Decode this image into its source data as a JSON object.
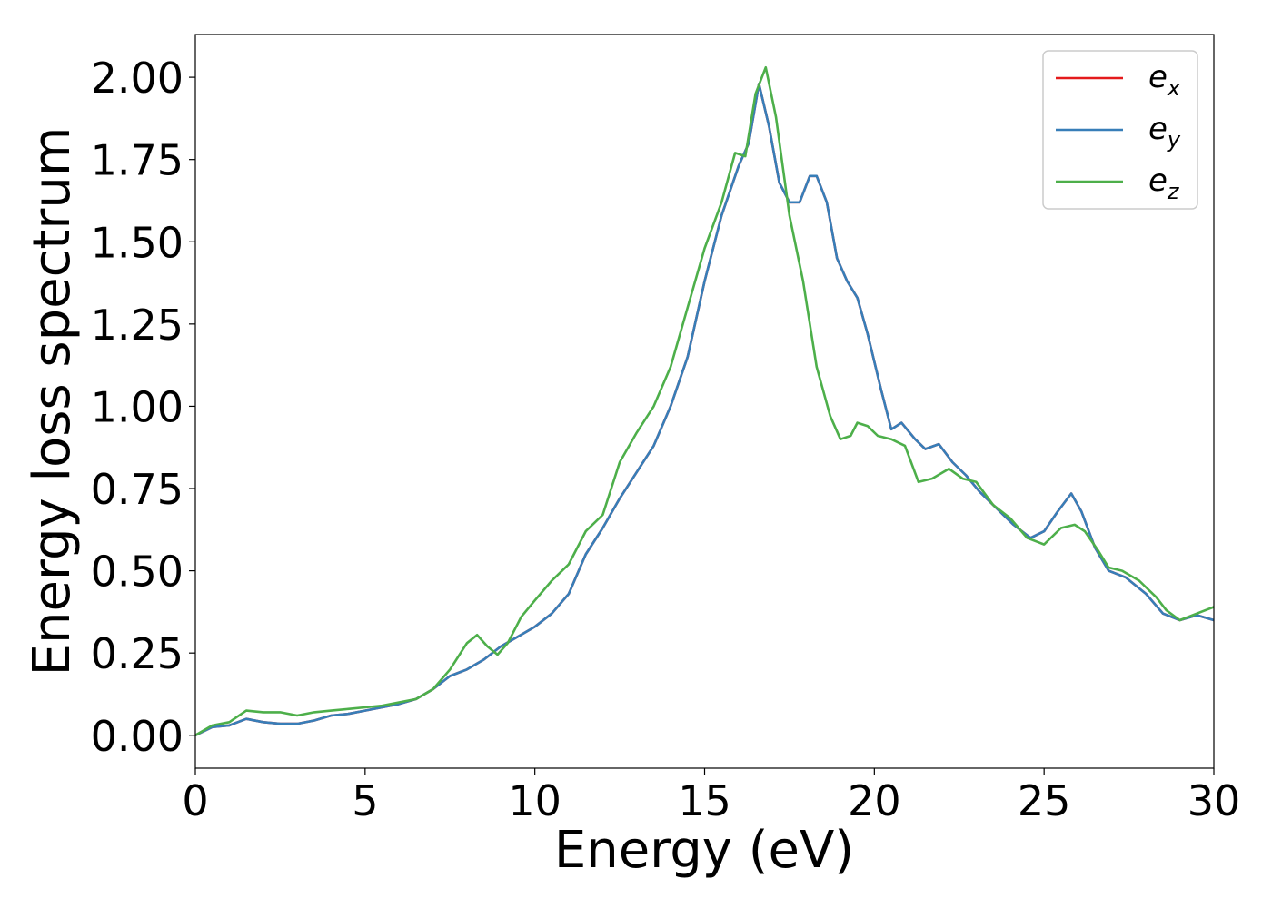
{
  "chart_data": {
    "type": "line",
    "xlabel": "Energy (eV)",
    "ylabel": "Energy loss spectrum",
    "xlim": [
      0,
      30
    ],
    "ylim": [
      -0.1,
      2.13
    ],
    "xticks": [
      0,
      5,
      10,
      15,
      20,
      25,
      30
    ],
    "xtick_labels": [
      "0",
      "5",
      "10",
      "15",
      "20",
      "25",
      "30"
    ],
    "yticks": [
      0,
      0.25,
      0.5,
      0.75,
      1.0,
      1.25,
      1.5,
      1.75,
      2.0
    ],
    "ytick_labels": [
      "0.00",
      "0.25",
      "0.50",
      "0.75",
      "1.00",
      "1.25",
      "1.50",
      "1.75",
      "2.00"
    ],
    "grid": false,
    "legend": "top-right",
    "series": [
      {
        "name": "e_x",
        "label_base": "e",
        "label_sub": "x",
        "color": "#e41a1c",
        "x": [
          0,
          0.5,
          1,
          1.5,
          2,
          2.5,
          3,
          3.5,
          4,
          4.5,
          5,
          5.5,
          6,
          6.5,
          7,
          7.5,
          8,
          8.5,
          9,
          9.5,
          10,
          10.5,
          11,
          11.5,
          12,
          12.5,
          13,
          13.5,
          14,
          14.5,
          15,
          15.5,
          16,
          16.3,
          16.6,
          16.9,
          17.2,
          17.5,
          17.8,
          18.1,
          18.3,
          18.6,
          18.9,
          19.2,
          19.5,
          19.8,
          20.2,
          20.5,
          20.8,
          21.2,
          21.5,
          21.9,
          22.3,
          22.7,
          23.1,
          23.6,
          24.1,
          24.6,
          25,
          25.4,
          25.8,
          26.1,
          26.5,
          26.9,
          27.4,
          28,
          28.5,
          29,
          29.5,
          30
        ],
        "y": [
          0,
          0.025,
          0.03,
          0.05,
          0.04,
          0.035,
          0.035,
          0.045,
          0.06,
          0.065,
          0.075,
          0.085,
          0.095,
          0.11,
          0.14,
          0.18,
          0.2,
          0.23,
          0.27,
          0.3,
          0.33,
          0.37,
          0.43,
          0.55,
          0.63,
          0.72,
          0.8,
          0.88,
          1.0,
          1.15,
          1.38,
          1.58,
          1.73,
          1.8,
          1.98,
          1.85,
          1.68,
          1.62,
          1.62,
          1.7,
          1.7,
          1.62,
          1.45,
          1.38,
          1.33,
          1.22,
          1.05,
          0.93,
          0.95,
          0.9,
          0.87,
          0.885,
          0.83,
          0.79,
          0.74,
          0.69,
          0.64,
          0.6,
          0.62,
          0.68,
          0.735,
          0.68,
          0.57,
          0.5,
          0.48,
          0.43,
          0.37,
          0.35,
          0.365,
          0.35
        ]
      },
      {
        "name": "e_y",
        "label_base": "e",
        "label_sub": "y",
        "color": "#377eb8",
        "x": [
          0,
          0.5,
          1,
          1.5,
          2,
          2.5,
          3,
          3.5,
          4,
          4.5,
          5,
          5.5,
          6,
          6.5,
          7,
          7.5,
          8,
          8.5,
          9,
          9.5,
          10,
          10.5,
          11,
          11.5,
          12,
          12.5,
          13,
          13.5,
          14,
          14.5,
          15,
          15.5,
          16,
          16.3,
          16.6,
          16.9,
          17.2,
          17.5,
          17.8,
          18.1,
          18.3,
          18.6,
          18.9,
          19.2,
          19.5,
          19.8,
          20.2,
          20.5,
          20.8,
          21.2,
          21.5,
          21.9,
          22.3,
          22.7,
          23.1,
          23.6,
          24.1,
          24.6,
          25,
          25.4,
          25.8,
          26.1,
          26.5,
          26.9,
          27.4,
          28,
          28.5,
          29,
          29.5,
          30
        ],
        "y": [
          0,
          0.025,
          0.03,
          0.05,
          0.04,
          0.035,
          0.035,
          0.045,
          0.06,
          0.065,
          0.075,
          0.085,
          0.095,
          0.11,
          0.14,
          0.18,
          0.2,
          0.23,
          0.27,
          0.3,
          0.33,
          0.37,
          0.43,
          0.55,
          0.63,
          0.72,
          0.8,
          0.88,
          1.0,
          1.15,
          1.38,
          1.58,
          1.73,
          1.8,
          1.98,
          1.85,
          1.68,
          1.62,
          1.62,
          1.7,
          1.7,
          1.62,
          1.45,
          1.38,
          1.33,
          1.22,
          1.05,
          0.93,
          0.95,
          0.9,
          0.87,
          0.885,
          0.83,
          0.79,
          0.74,
          0.69,
          0.64,
          0.6,
          0.62,
          0.68,
          0.735,
          0.68,
          0.57,
          0.5,
          0.48,
          0.43,
          0.37,
          0.35,
          0.365,
          0.35
        ]
      },
      {
        "name": "e_z",
        "label_base": "e",
        "label_sub": "z",
        "color": "#4daf4a",
        "x": [
          0,
          0.5,
          1,
          1.5,
          2,
          2.5,
          3,
          3.5,
          4,
          4.5,
          5,
          5.5,
          6,
          6.5,
          7,
          7.5,
          8,
          8.3,
          8.6,
          8.9,
          9.2,
          9.6,
          10,
          10.5,
          11,
          11.5,
          12,
          12.5,
          13,
          13.5,
          14,
          14.5,
          15,
          15.5,
          15.9,
          16.2,
          16.5,
          16.8,
          17.1,
          17.5,
          17.9,
          18.3,
          18.7,
          19,
          19.3,
          19.5,
          19.8,
          20.1,
          20.5,
          20.9,
          21.3,
          21.7,
          22.2,
          22.6,
          23,
          23.5,
          24,
          24.5,
          25,
          25.5,
          25.9,
          26.2,
          26.6,
          26.9,
          27.3,
          27.8,
          28.3,
          28.6,
          29,
          29.5,
          30
        ],
        "y": [
          0,
          0.03,
          0.04,
          0.075,
          0.07,
          0.07,
          0.06,
          0.07,
          0.075,
          0.08,
          0.085,
          0.09,
          0.1,
          0.11,
          0.14,
          0.2,
          0.28,
          0.305,
          0.27,
          0.245,
          0.28,
          0.36,
          0.41,
          0.47,
          0.52,
          0.62,
          0.67,
          0.83,
          0.92,
          1.0,
          1.12,
          1.3,
          1.48,
          1.62,
          1.77,
          1.76,
          1.95,
          2.03,
          1.88,
          1.58,
          1.38,
          1.12,
          0.97,
          0.9,
          0.91,
          0.95,
          0.94,
          0.91,
          0.9,
          0.88,
          0.77,
          0.78,
          0.81,
          0.78,
          0.77,
          0.7,
          0.66,
          0.6,
          0.58,
          0.63,
          0.64,
          0.62,
          0.56,
          0.51,
          0.5,
          0.47,
          0.42,
          0.38,
          0.35,
          0.37,
          0.39
        ]
      }
    ]
  }
}
